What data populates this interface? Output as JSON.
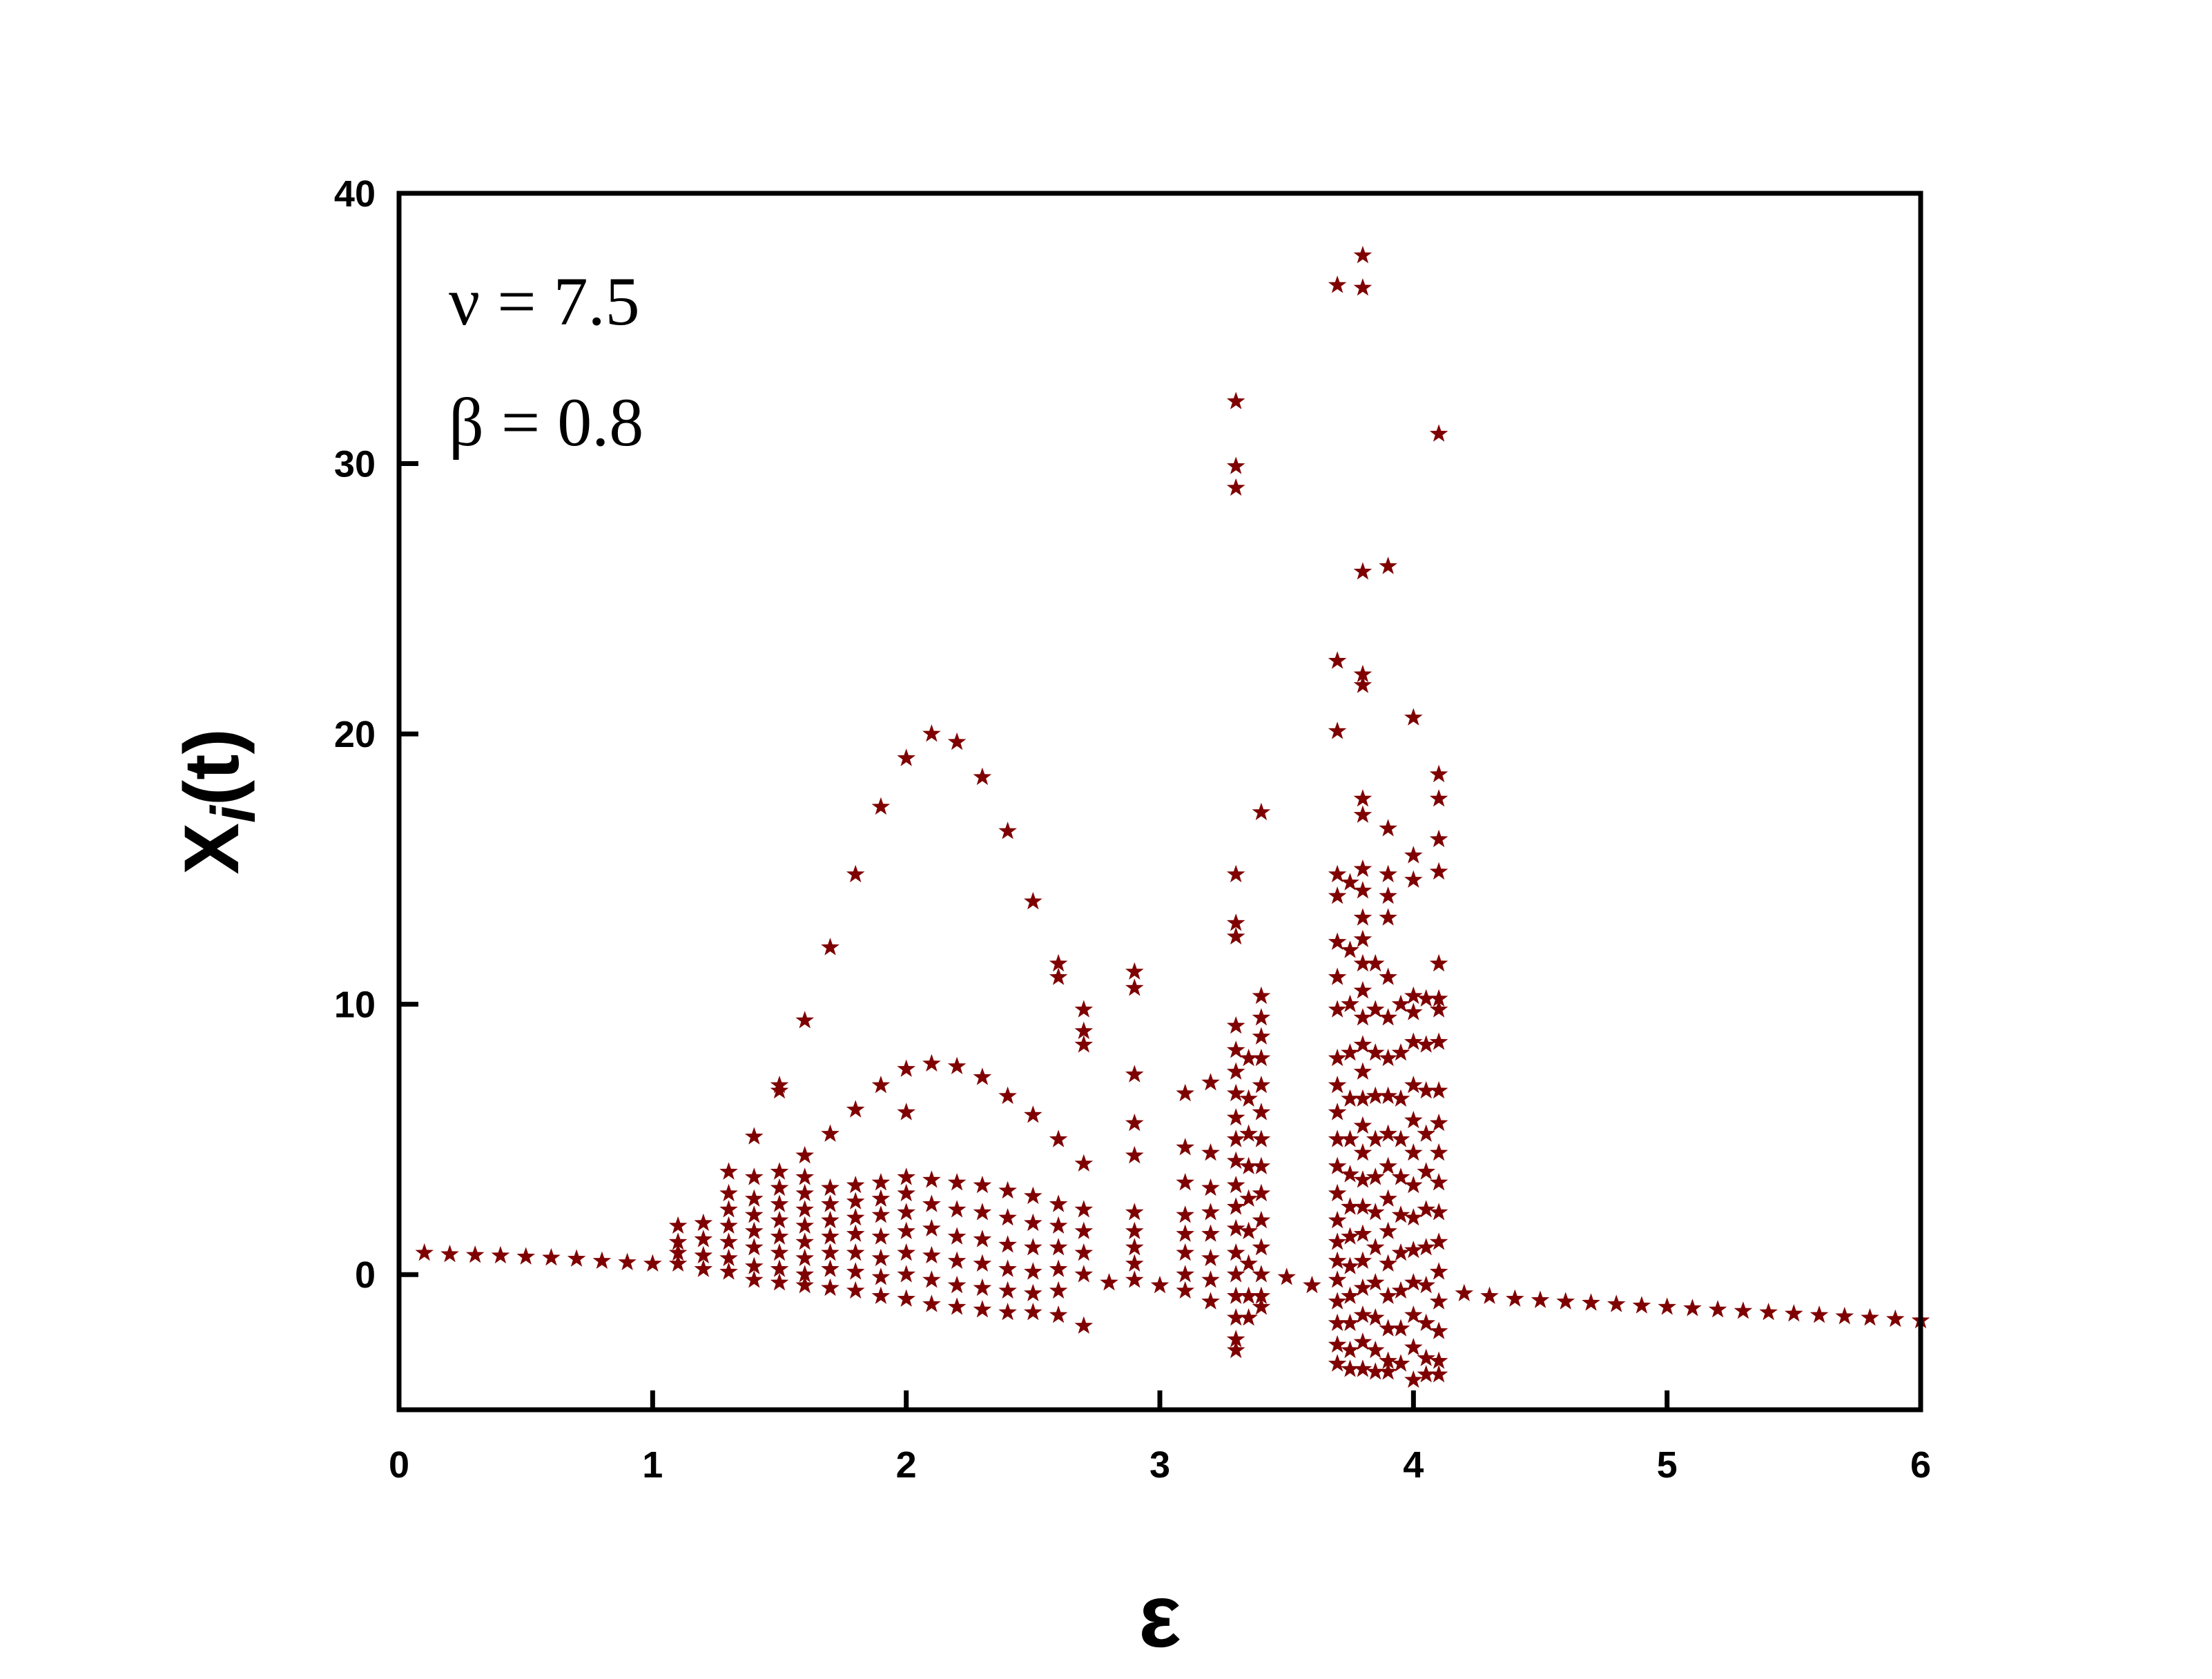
{
  "chart_data": {
    "type": "scatter",
    "marker": "star",
    "marker_color": "#7f0000",
    "xlabel": "ε",
    "ylabel_main": "X",
    "ylabel_sub": "i",
    "ylabel_suffix": "(t)",
    "xlim": [
      0,
      6
    ],
    "ylim": [
      -5,
      40
    ],
    "xticks": [
      "0",
      "1",
      "2",
      "3",
      "4",
      "5",
      "6"
    ],
    "yticks": [
      "0",
      "10",
      "20",
      "30",
      "40"
    ],
    "grid": false,
    "legend": "none",
    "annotations": [
      "ν = 7.5",
      "β = 0.8"
    ],
    "points": [
      [
        0.1,
        0.8
      ],
      [
        0.2,
        0.75
      ],
      [
        0.3,
        0.72
      ],
      [
        0.4,
        0.7
      ],
      [
        0.5,
        0.66
      ],
      [
        0.6,
        0.62
      ],
      [
        0.7,
        0.58
      ],
      [
        0.8,
        0.5
      ],
      [
        0.9,
        0.45
      ],
      [
        1.0,
        0.4
      ],
      [
        1.1,
        1.8
      ],
      [
        1.1,
        1.2
      ],
      [
        1.1,
        0.8
      ],
      [
        1.1,
        0.4
      ],
      [
        1.2,
        1.9
      ],
      [
        1.2,
        1.3
      ],
      [
        1.2,
        0.7
      ],
      [
        1.2,
        0.2
      ],
      [
        1.3,
        3.8
      ],
      [
        1.3,
        3.0
      ],
      [
        1.3,
        2.4
      ],
      [
        1.3,
        1.8
      ],
      [
        1.3,
        1.2
      ],
      [
        1.3,
        0.6
      ],
      [
        1.3,
        0.1
      ],
      [
        1.4,
        5.1
      ],
      [
        1.4,
        3.6
      ],
      [
        1.4,
        2.8
      ],
      [
        1.4,
        2.2
      ],
      [
        1.4,
        1.6
      ],
      [
        1.4,
        1.0
      ],
      [
        1.4,
        0.3
      ],
      [
        1.4,
        -0.2
      ],
      [
        1.5,
        7.0
      ],
      [
        1.5,
        6.8
      ],
      [
        1.5,
        3.8
      ],
      [
        1.5,
        3.2
      ],
      [
        1.5,
        2.6
      ],
      [
        1.5,
        2.0
      ],
      [
        1.5,
        1.4
      ],
      [
        1.5,
        0.8
      ],
      [
        1.5,
        0.2
      ],
      [
        1.5,
        -0.3
      ],
      [
        1.6,
        9.4
      ],
      [
        1.6,
        4.4
      ],
      [
        1.6,
        3.6
      ],
      [
        1.6,
        3.0
      ],
      [
        1.6,
        2.4
      ],
      [
        1.6,
        1.8
      ],
      [
        1.6,
        1.2
      ],
      [
        1.6,
        0.6
      ],
      [
        1.6,
        0.0
      ],
      [
        1.6,
        -0.4
      ],
      [
        1.7,
        12.1
      ],
      [
        1.7,
        5.2
      ],
      [
        1.7,
        3.2
      ],
      [
        1.7,
        2.6
      ],
      [
        1.7,
        2.0
      ],
      [
        1.7,
        1.4
      ],
      [
        1.7,
        0.8
      ],
      [
        1.7,
        0.2
      ],
      [
        1.7,
        -0.5
      ],
      [
        1.8,
        14.8
      ],
      [
        1.8,
        6.1
      ],
      [
        1.8,
        3.3
      ],
      [
        1.8,
        2.7
      ],
      [
        1.8,
        2.1
      ],
      [
        1.8,
        1.5
      ],
      [
        1.8,
        0.8
      ],
      [
        1.8,
        0.1
      ],
      [
        1.8,
        -0.6
      ],
      [
        1.9,
        17.3
      ],
      [
        1.9,
        7.0
      ],
      [
        1.9,
        3.4
      ],
      [
        1.9,
        2.8
      ],
      [
        1.9,
        2.2
      ],
      [
        1.9,
        1.4
      ],
      [
        1.9,
        0.6
      ],
      [
        1.9,
        -0.1
      ],
      [
        1.9,
        -0.8
      ],
      [
        2.0,
        19.1
      ],
      [
        2.0,
        7.6
      ],
      [
        2.0,
        6.0
      ],
      [
        2.0,
        3.6
      ],
      [
        2.0,
        3.0
      ],
      [
        2.0,
        2.3
      ],
      [
        2.0,
        1.6
      ],
      [
        2.0,
        0.8
      ],
      [
        2.0,
        0.0
      ],
      [
        2.0,
        -0.9
      ],
      [
        2.1,
        20.0
      ],
      [
        2.1,
        7.8
      ],
      [
        2.1,
        3.5
      ],
      [
        2.1,
        2.6
      ],
      [
        2.1,
        1.7
      ],
      [
        2.1,
        0.7
      ],
      [
        2.1,
        -0.2
      ],
      [
        2.1,
        -1.1
      ],
      [
        2.2,
        19.7
      ],
      [
        2.2,
        7.7
      ],
      [
        2.2,
        3.4
      ],
      [
        2.2,
        2.4
      ],
      [
        2.2,
        1.4
      ],
      [
        2.2,
        0.5
      ],
      [
        2.2,
        -0.4
      ],
      [
        2.2,
        -1.2
      ],
      [
        2.3,
        18.4
      ],
      [
        2.3,
        7.3
      ],
      [
        2.3,
        3.3
      ],
      [
        2.3,
        2.3
      ],
      [
        2.3,
        1.3
      ],
      [
        2.3,
        0.4
      ],
      [
        2.3,
        -0.5
      ],
      [
        2.3,
        -1.3
      ],
      [
        2.4,
        16.4
      ],
      [
        2.4,
        6.6
      ],
      [
        2.4,
        3.1
      ],
      [
        2.4,
        2.1
      ],
      [
        2.4,
        1.1
      ],
      [
        2.4,
        0.2
      ],
      [
        2.4,
        -0.6
      ],
      [
        2.4,
        -1.4
      ],
      [
        2.5,
        13.8
      ],
      [
        2.5,
        5.9
      ],
      [
        2.5,
        2.9
      ],
      [
        2.5,
        1.9
      ],
      [
        2.5,
        1.0
      ],
      [
        2.5,
        0.1
      ],
      [
        2.5,
        -0.7
      ],
      [
        2.5,
        -1.4
      ],
      [
        2.6,
        11.5
      ],
      [
        2.6,
        11.0
      ],
      [
        2.6,
        5.0
      ],
      [
        2.6,
        2.6
      ],
      [
        2.6,
        1.8
      ],
      [
        2.6,
        1.0
      ],
      [
        2.6,
        0.2
      ],
      [
        2.6,
        -0.6
      ],
      [
        2.6,
        -1.5
      ],
      [
        2.7,
        9.8
      ],
      [
        2.7,
        9.0
      ],
      [
        2.7,
        8.5
      ],
      [
        2.7,
        4.1
      ],
      [
        2.7,
        2.4
      ],
      [
        2.7,
        1.6
      ],
      [
        2.7,
        0.8
      ],
      [
        2.7,
        0.0
      ],
      [
        2.7,
        -1.9
      ],
      [
        2.8,
        -0.3
      ],
      [
        2.9,
        11.2
      ],
      [
        2.9,
        10.6
      ],
      [
        2.9,
        7.4
      ],
      [
        2.9,
        5.6
      ],
      [
        2.9,
        4.4
      ],
      [
        2.9,
        2.3
      ],
      [
        2.9,
        1.6
      ],
      [
        2.9,
        1.0
      ],
      [
        2.9,
        0.4
      ],
      [
        2.9,
        -0.2
      ],
      [
        3.0,
        -0.4
      ],
      [
        3.1,
        6.7
      ],
      [
        3.1,
        4.7
      ],
      [
        3.1,
        3.4
      ],
      [
        3.1,
        2.2
      ],
      [
        3.1,
        1.5
      ],
      [
        3.1,
        0.8
      ],
      [
        3.1,
        0.0
      ],
      [
        3.1,
        -0.6
      ],
      [
        3.2,
        7.1
      ],
      [
        3.2,
        4.5
      ],
      [
        3.2,
        3.2
      ],
      [
        3.2,
        2.3
      ],
      [
        3.2,
        1.5
      ],
      [
        3.2,
        0.6
      ],
      [
        3.2,
        -0.2
      ],
      [
        3.2,
        -1.0
      ],
      [
        3.3,
        32.3
      ],
      [
        3.3,
        29.9
      ],
      [
        3.3,
        29.1
      ],
      [
        3.3,
        14.8
      ],
      [
        3.3,
        13.0
      ],
      [
        3.3,
        12.5
      ],
      [
        3.3,
        9.2
      ],
      [
        3.3,
        8.3
      ],
      [
        3.3,
        7.5
      ],
      [
        3.3,
        6.7
      ],
      [
        3.3,
        5.8
      ],
      [
        3.3,
        5.0
      ],
      [
        3.3,
        4.2
      ],
      [
        3.3,
        3.3
      ],
      [
        3.3,
        2.5
      ],
      [
        3.3,
        1.7
      ],
      [
        3.3,
        0.8
      ],
      [
        3.3,
        0.0
      ],
      [
        3.3,
        -0.8
      ],
      [
        3.3,
        -1.6
      ],
      [
        3.3,
        -2.4
      ],
      [
        3.3,
        -2.8
      ],
      [
        3.35,
        8.0
      ],
      [
        3.35,
        6.5
      ],
      [
        3.35,
        5.2
      ],
      [
        3.35,
        4.0
      ],
      [
        3.35,
        2.8
      ],
      [
        3.35,
        1.6
      ],
      [
        3.35,
        0.4
      ],
      [
        3.35,
        -0.8
      ],
      [
        3.35,
        -1.6
      ],
      [
        3.4,
        17.1
      ],
      [
        3.4,
        10.3
      ],
      [
        3.4,
        9.5
      ],
      [
        3.4,
        8.8
      ],
      [
        3.4,
        8.0
      ],
      [
        3.4,
        7.0
      ],
      [
        3.4,
        6.0
      ],
      [
        3.4,
        5.0
      ],
      [
        3.4,
        4.0
      ],
      [
        3.4,
        3.0
      ],
      [
        3.4,
        2.0
      ],
      [
        3.4,
        1.0
      ],
      [
        3.4,
        0.0
      ],
      [
        3.4,
        -0.8
      ],
      [
        3.4,
        -1.2
      ],
      [
        3.5,
        -0.1
      ],
      [
        3.6,
        -0.4
      ],
      [
        3.7,
        36.6
      ],
      [
        3.7,
        22.7
      ],
      [
        3.7,
        20.1
      ],
      [
        3.7,
        14.8
      ],
      [
        3.7,
        14.0
      ],
      [
        3.7,
        12.3
      ],
      [
        3.7,
        11.0
      ],
      [
        3.7,
        9.8
      ],
      [
        3.7,
        8.0
      ],
      [
        3.7,
        7.0
      ],
      [
        3.7,
        6.0
      ],
      [
        3.7,
        5.0
      ],
      [
        3.7,
        4.0
      ],
      [
        3.7,
        3.0
      ],
      [
        3.7,
        2.0
      ],
      [
        3.7,
        1.2
      ],
      [
        3.7,
        0.5
      ],
      [
        3.7,
        -0.2
      ],
      [
        3.7,
        -1.0
      ],
      [
        3.7,
        -1.8
      ],
      [
        3.7,
        -2.6
      ],
      [
        3.7,
        -3.3
      ],
      [
        3.75,
        14.5
      ],
      [
        3.75,
        12.0
      ],
      [
        3.75,
        10.0
      ],
      [
        3.75,
        8.2
      ],
      [
        3.75,
        6.5
      ],
      [
        3.75,
        5.0
      ],
      [
        3.75,
        3.7
      ],
      [
        3.75,
        2.5
      ],
      [
        3.75,
        1.4
      ],
      [
        3.75,
        0.3
      ],
      [
        3.75,
        -0.8
      ],
      [
        3.75,
        -1.8
      ],
      [
        3.75,
        -2.8
      ],
      [
        3.75,
        -3.5
      ],
      [
        3.8,
        37.7
      ],
      [
        3.8,
        36.5
      ],
      [
        3.8,
        26.0
      ],
      [
        3.8,
        22.2
      ],
      [
        3.8,
        21.8
      ],
      [
        3.8,
        17.6
      ],
      [
        3.8,
        17.0
      ],
      [
        3.8,
        15.0
      ],
      [
        3.8,
        14.2
      ],
      [
        3.8,
        13.2
      ],
      [
        3.8,
        12.4
      ],
      [
        3.8,
        11.5
      ],
      [
        3.8,
        10.5
      ],
      [
        3.8,
        9.5
      ],
      [
        3.8,
        8.5
      ],
      [
        3.8,
        7.5
      ],
      [
        3.8,
        6.5
      ],
      [
        3.8,
        5.5
      ],
      [
        3.8,
        4.5
      ],
      [
        3.8,
        3.5
      ],
      [
        3.8,
        2.5
      ],
      [
        3.8,
        1.5
      ],
      [
        3.8,
        0.5
      ],
      [
        3.8,
        -0.5
      ],
      [
        3.8,
        -1.5
      ],
      [
        3.8,
        -2.5
      ],
      [
        3.8,
        -3.5
      ],
      [
        3.85,
        11.5
      ],
      [
        3.85,
        9.8
      ],
      [
        3.85,
        8.2
      ],
      [
        3.85,
        6.6
      ],
      [
        3.85,
        5.0
      ],
      [
        3.85,
        3.6
      ],
      [
        3.85,
        2.3
      ],
      [
        3.85,
        1.0
      ],
      [
        3.85,
        -0.3
      ],
      [
        3.85,
        -1.6
      ],
      [
        3.85,
        -2.8
      ],
      [
        3.85,
        -3.6
      ],
      [
        3.9,
        26.2
      ],
      [
        3.9,
        16.5
      ],
      [
        3.9,
        14.8
      ],
      [
        3.9,
        14.0
      ],
      [
        3.9,
        13.2
      ],
      [
        3.9,
        11.0
      ],
      [
        3.9,
        9.5
      ],
      [
        3.9,
        8.0
      ],
      [
        3.9,
        6.6
      ],
      [
        3.9,
        5.2
      ],
      [
        3.9,
        4.0
      ],
      [
        3.9,
        2.8
      ],
      [
        3.9,
        1.6
      ],
      [
        3.9,
        0.4
      ],
      [
        3.9,
        -0.8
      ],
      [
        3.9,
        -2.0
      ],
      [
        3.9,
        -3.2
      ],
      [
        3.9,
        -3.6
      ],
      [
        3.95,
        10.0
      ],
      [
        3.95,
        8.2
      ],
      [
        3.95,
        6.5
      ],
      [
        3.95,
        5.0
      ],
      [
        3.95,
        3.6
      ],
      [
        3.95,
        2.2
      ],
      [
        3.95,
        0.8
      ],
      [
        3.95,
        -0.6
      ],
      [
        3.95,
        -2.0
      ],
      [
        3.95,
        -3.3
      ],
      [
        4.0,
        20.6
      ],
      [
        4.0,
        15.5
      ],
      [
        4.0,
        14.6
      ],
      [
        4.0,
        10.3
      ],
      [
        4.0,
        9.7
      ],
      [
        4.0,
        8.6
      ],
      [
        4.0,
        7.0
      ],
      [
        4.0,
        5.7
      ],
      [
        4.0,
        4.5
      ],
      [
        4.0,
        3.3
      ],
      [
        4.0,
        2.1
      ],
      [
        4.0,
        0.9
      ],
      [
        4.0,
        -0.3
      ],
      [
        4.0,
        -1.5
      ],
      [
        4.0,
        -2.7
      ],
      [
        4.0,
        -3.9
      ],
      [
        4.05,
        10.2
      ],
      [
        4.05,
        8.5
      ],
      [
        4.05,
        6.8
      ],
      [
        4.05,
        5.2
      ],
      [
        4.05,
        3.8
      ],
      [
        4.05,
        2.4
      ],
      [
        4.05,
        1.0
      ],
      [
        4.05,
        -0.4
      ],
      [
        4.05,
        -1.8
      ],
      [
        4.05,
        -3.1
      ],
      [
        4.05,
        -3.7
      ],
      [
        4.1,
        31.1
      ],
      [
        4.1,
        18.5
      ],
      [
        4.1,
        17.6
      ],
      [
        4.1,
        16.1
      ],
      [
        4.1,
        14.9
      ],
      [
        4.1,
        11.5
      ],
      [
        4.1,
        10.2
      ],
      [
        4.1,
        9.8
      ],
      [
        4.1,
        8.6
      ],
      [
        4.1,
        6.8
      ],
      [
        4.1,
        5.6
      ],
      [
        4.1,
        4.5
      ],
      [
        4.1,
        3.4
      ],
      [
        4.1,
        2.3
      ],
      [
        4.1,
        1.2
      ],
      [
        4.1,
        0.1
      ],
      [
        4.1,
        -1.0
      ],
      [
        4.1,
        -2.1
      ],
      [
        4.1,
        -3.2
      ],
      [
        4.1,
        -3.7
      ],
      [
        4.2,
        -0.7
      ],
      [
        4.3,
        -0.8
      ],
      [
        4.4,
        -0.9
      ],
      [
        4.5,
        -0.95
      ],
      [
        4.6,
        -1.0
      ],
      [
        4.7,
        -1.05
      ],
      [
        4.8,
        -1.1
      ],
      [
        4.9,
        -1.15
      ],
      [
        5.0,
        -1.2
      ],
      [
        5.1,
        -1.25
      ],
      [
        5.2,
        -1.3
      ],
      [
        5.3,
        -1.35
      ],
      [
        5.4,
        -1.4
      ],
      [
        5.5,
        -1.45
      ],
      [
        5.6,
        -1.5
      ],
      [
        5.7,
        -1.55
      ],
      [
        5.8,
        -1.6
      ],
      [
        5.9,
        -1.65
      ],
      [
        6.0,
        -1.7
      ]
    ]
  }
}
